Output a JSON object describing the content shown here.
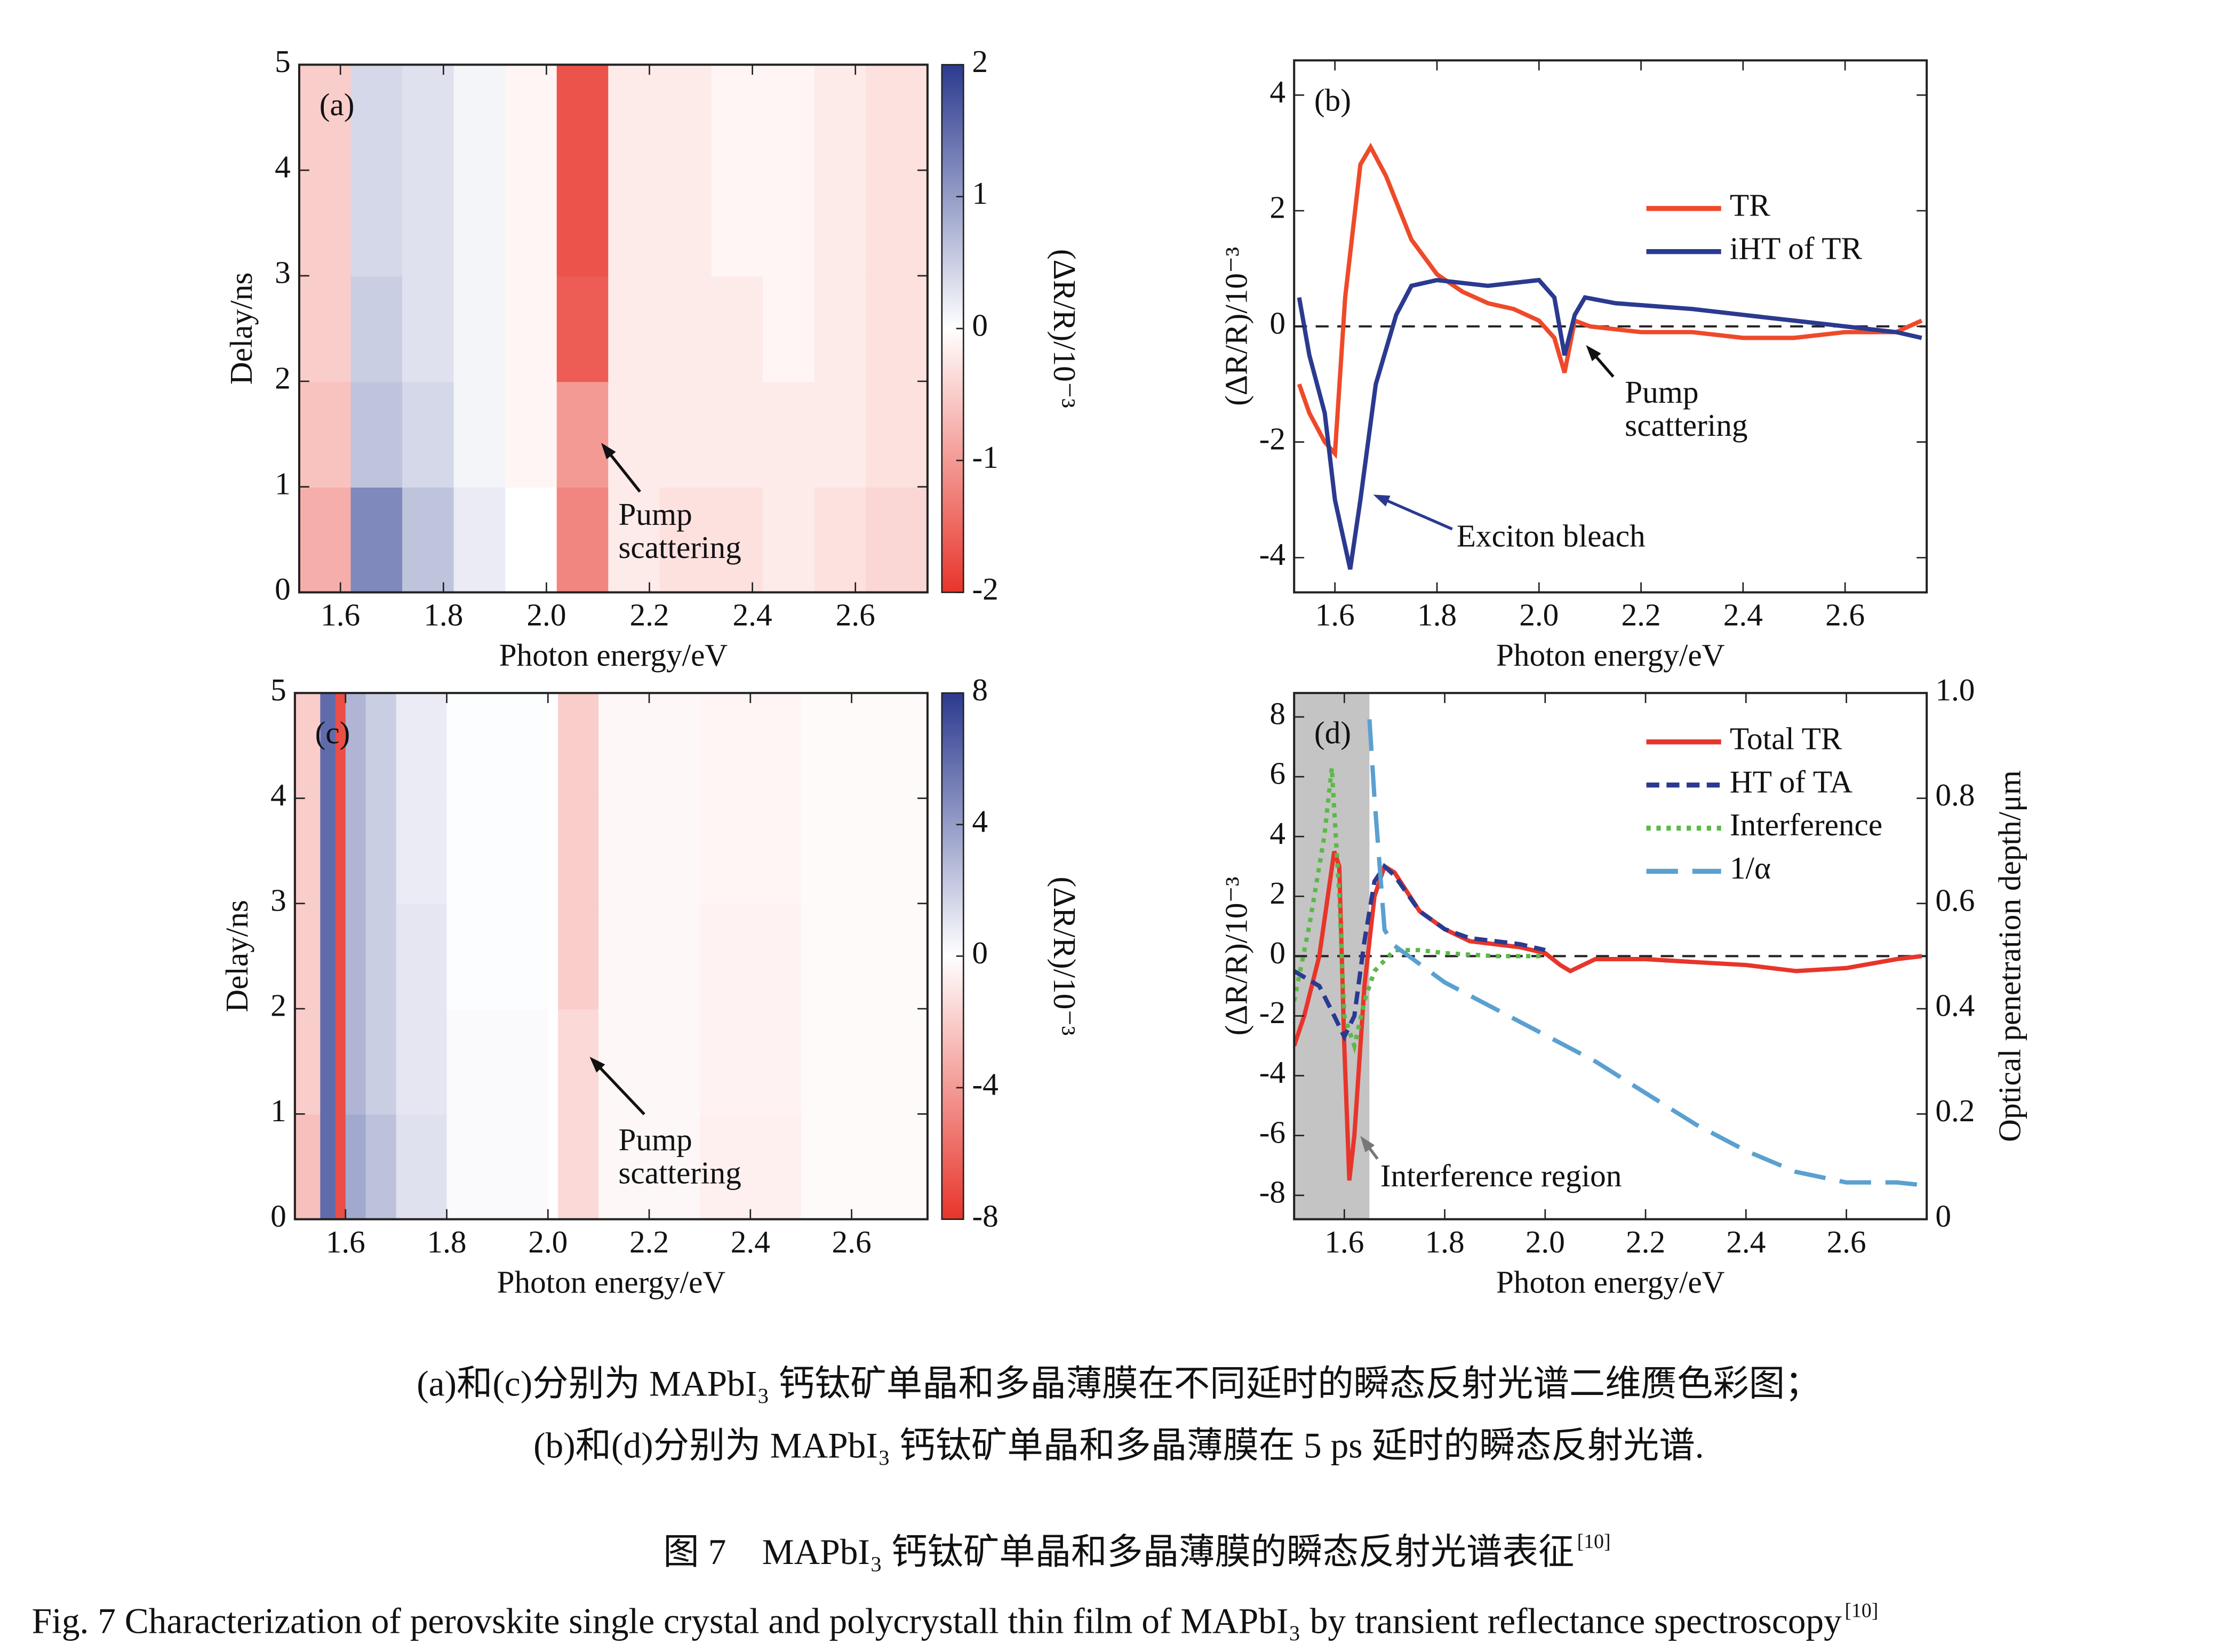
{
  "chart_data": [
    {
      "type": "heatmap",
      "panel_label": "(a)",
      "xlabel": "Photon energy/eV",
      "ylabel": "Delay/ns",
      "colorbar_label": "(ΔR/R)/10⁻³",
      "xlim": [
        1.52,
        2.74
      ],
      "ylim": [
        0,
        5
      ],
      "clim": [
        -2,
        2
      ],
      "xticks": [
        1.6,
        1.8,
        {
          "value": 2,
          "label": "2.0"
        },
        2.2,
        2.4,
        2.6
      ],
      "yticks": [
        0,
        1,
        2,
        3,
        4,
        5
      ],
      "cticks": [
        -2,
        -1,
        0,
        1,
        2
      ],
      "xbins": [
        1.52,
        1.62,
        1.72,
        1.82,
        1.92,
        2.02,
        2.12,
        2.22,
        2.32,
        2.42,
        2.52,
        2.62,
        2.74
      ],
      "ybins": [
        0,
        1,
        2,
        3,
        4,
        5
      ],
      "values": [
        [
          -0.8,
          1.2,
          0.6,
          0.2,
          0.0,
          -1.2,
          -0.2,
          -0.3,
          -0.3,
          -0.2,
          -0.3,
          -0.4
        ],
        [
          -0.6,
          0.6,
          0.4,
          0.1,
          -0.1,
          -1.0,
          -0.2,
          -0.2,
          -0.2,
          -0.2,
          -0.2,
          -0.3
        ],
        [
          -0.5,
          0.5,
          0.3,
          0.1,
          -0.1,
          -1.6,
          -0.2,
          -0.2,
          -0.2,
          -0.1,
          -0.2,
          -0.3
        ],
        [
          -0.5,
          0.4,
          0.3,
          0.1,
          -0.1,
          -1.7,
          -0.2,
          -0.2,
          -0.1,
          -0.1,
          -0.2,
          -0.3
        ],
        [
          -0.5,
          0.4,
          0.3,
          0.1,
          -0.1,
          -1.7,
          -0.2,
          -0.2,
          -0.1,
          -0.1,
          -0.2,
          -0.3
        ]
      ],
      "colors": {
        "positive": "#2b3a8f",
        "negative": "#e8352b"
      },
      "annotations": [
        {
          "text": [
            "Pump",
            "scattering"
          ]
        }
      ]
    },
    {
      "type": "line",
      "panel_label": "(b)",
      "xlabel": "Photon energy/eV",
      "ylabel": "(ΔR/R)/10⁻³",
      "xlim": [
        1.52,
        2.76
      ],
      "ylim": [
        -4.6,
        4.6
      ],
      "xticks": [
        1.6,
        1.8,
        {
          "value": 2,
          "label": "2.0"
        },
        2.2,
        2.4,
        2.6
      ],
      "yticks": [
        -4,
        -2,
        0,
        2,
        4
      ],
      "zero_line": true,
      "legend": "upper right",
      "series": [
        {
          "name": "TR",
          "color": "#ee4a2a",
          "dash": "solid",
          "x": [
            1.53,
            1.55,
            1.58,
            1.6,
            1.62,
            1.65,
            1.67,
            1.7,
            1.75,
            1.8,
            1.85,
            1.9,
            1.95,
            2.0,
            2.03,
            2.05,
            2.07,
            2.1,
            2.2,
            2.3,
            2.4,
            2.5,
            2.6,
            2.7,
            2.75
          ],
          "values": [
            -1,
            -1.5,
            -2,
            -2.2,
            0.5,
            2.8,
            3.1,
            2.6,
            1.5,
            0.9,
            0.6,
            0.4,
            0.3,
            0.1,
            -0.2,
            -0.8,
            0.1,
            0,
            -0.1,
            -0.1,
            -0.2,
            -0.2,
            -0.1,
            -0.1,
            0.1
          ]
        },
        {
          "name": "iHT of TR",
          "color": "#2b3a8f",
          "dash": "solid",
          "x": [
            1.53,
            1.55,
            1.58,
            1.6,
            1.63,
            1.65,
            1.68,
            1.72,
            1.75,
            1.8,
            1.9,
            2.0,
            2.03,
            2.05,
            2.07,
            2.09,
            2.15,
            2.3,
            2.4,
            2.5,
            2.6,
            2.7,
            2.75
          ],
          "values": [
            0.5,
            -0.5,
            -1.5,
            -3,
            -4.2,
            -3,
            -1,
            0.2,
            0.7,
            0.8,
            0.7,
            0.8,
            0.5,
            -0.5,
            0.2,
            0.5,
            0.4,
            0.3,
            0.2,
            0.1,
            0,
            -0.1,
            -0.2
          ]
        }
      ],
      "annotations": [
        {
          "text": [
            "Pump",
            "scattering"
          ]
        },
        {
          "text": [
            "Exciton bleach"
          ],
          "color": "#2b3a8f"
        }
      ]
    },
    {
      "type": "heatmap",
      "panel_label": "(c)",
      "xlabel": "Photon energy/eV",
      "ylabel": "Delay/ns",
      "colorbar_label": "(ΔR/R)/10⁻³",
      "xlim": [
        1.5,
        2.75
      ],
      "ylim": [
        0,
        5
      ],
      "clim": [
        -8,
        8
      ],
      "xticks": [
        1.6,
        1.8,
        {
          "value": 2,
          "label": "2.0"
        },
        2.2,
        2.4,
        2.6
      ],
      "yticks": [
        0,
        1,
        2,
        3,
        4,
        5
      ],
      "cticks": [
        -8,
        -4,
        0,
        4,
        8
      ],
      "xbins": [
        1.5,
        1.55,
        1.58,
        1.6,
        1.64,
        1.7,
        1.8,
        2.0,
        2.02,
        2.1,
        2.3,
        2.5,
        2.75
      ],
      "ybins": [
        0,
        1,
        2,
        3,
        4,
        5
      ],
      "values": [
        [
          -2.5,
          6,
          -7,
          3.5,
          2.5,
          1.2,
          0.2,
          0,
          -1.5,
          -0.3,
          -0.6,
          -0.2
        ],
        [
          -2,
          6,
          -7,
          3,
          2,
          1,
          0.2,
          0,
          -1.5,
          -0.3,
          -0.5,
          -0.2
        ],
        [
          -2,
          6,
          -7,
          3,
          2,
          1,
          0.1,
          0,
          -2,
          -0.3,
          -0.5,
          -0.2
        ],
        [
          -2,
          6,
          -7,
          3,
          2,
          0.8,
          0.1,
          0,
          -2,
          -0.3,
          -0.4,
          -0.2
        ],
        [
          -2,
          6,
          -7,
          3,
          2,
          0.8,
          0.1,
          0,
          -2,
          -0.3,
          -0.4,
          -0.2
        ]
      ],
      "colors": {
        "positive": "#2b3a8f",
        "negative": "#e8352b"
      },
      "annotations": [
        {
          "text": [
            "Pump",
            "scattering"
          ]
        }
      ]
    },
    {
      "type": "line",
      "panel_label": "(d)",
      "xlabel": "Photon energy/eV",
      "ylabel": "(ΔR/R)/10⁻³",
      "y2label": "Optical penetration depth/μm",
      "xlim": [
        1.5,
        2.76
      ],
      "ylim": [
        -8.8,
        8.8
      ],
      "y2lim": [
        0,
        1
      ],
      "xticks": [
        1.6,
        1.8,
        {
          "value": 2,
          "label": "2.0"
        },
        2.2,
        2.4,
        2.6
      ],
      "yticks": [
        -8,
        -6,
        -4,
        -2,
        0,
        2,
        4,
        6,
        8
      ],
      "y2ticks": [
        0,
        0.2,
        0.4,
        0.6,
        0.8,
        {
          "value": 1,
          "label": "1.0"
        }
      ],
      "zero_line": true,
      "legend": "upper right",
      "shaded_region": [
        1.5,
        1.65
      ],
      "shade_color": "#c4c4c4",
      "series": [
        {
          "name": "Total TR",
          "color": "#e8352b",
          "dash": "solid",
          "x": [
            1.5,
            1.52,
            1.55,
            1.58,
            1.59,
            1.6,
            1.61,
            1.62,
            1.64,
            1.66,
            1.68,
            1.7,
            1.75,
            1.8,
            1.85,
            1.9,
            1.95,
            2.0,
            2.03,
            2.05,
            2.1,
            2.2,
            2.3,
            2.4,
            2.5,
            2.6,
            2.7,
            2.75
          ],
          "values": [
            -3,
            -2,
            0,
            3.5,
            3,
            -3,
            -7.5,
            -6,
            -1,
            2,
            3,
            2.8,
            1.5,
            0.9,
            0.5,
            0.4,
            0.3,
            0.1,
            -0.3,
            -0.5,
            -0.1,
            -0.1,
            -0.2,
            -0.3,
            -0.5,
            -0.4,
            -0.1,
            0
          ]
        },
        {
          "name": "HT of TA",
          "color": "#2b3a8f",
          "dash": "dashed",
          "x": [
            1.5,
            1.55,
            1.58,
            1.6,
            1.62,
            1.64,
            1.66,
            1.68,
            1.7,
            1.75,
            1.8,
            1.85,
            1.9,
            1.95,
            2.0
          ],
          "values": [
            -0.5,
            -1,
            -2,
            -2.7,
            -2,
            0.5,
            2.5,
            3,
            2.7,
            1.5,
            0.9,
            0.6,
            0.5,
            0.4,
            0.2
          ]
        },
        {
          "name": "Interference",
          "color": "#5cb849",
          "dash": "dotted",
          "x": [
            1.5,
            1.53,
            1.56,
            1.575,
            1.59,
            1.6,
            1.62,
            1.64,
            1.66,
            1.7,
            1.75,
            1.8,
            1.9,
            2.0
          ],
          "values": [
            -1.5,
            1,
            4,
            6.3,
            2,
            -2,
            -3,
            -1.5,
            -0.5,
            0.2,
            0.2,
            0.1,
            0,
            0
          ]
        },
        {
          "name": "1/α",
          "color": "#5aa0d0",
          "dash": "longdash",
          "axis": "y2",
          "x": [
            1.65,
            1.66,
            1.68,
            1.7,
            1.8,
            1.9,
            2.0,
            2.1,
            2.2,
            2.3,
            2.4,
            2.5,
            2.6,
            2.7,
            2.75
          ],
          "values": [
            0.95,
            0.8,
            0.55,
            0.52,
            0.45,
            0.4,
            0.35,
            0.3,
            0.24,
            0.18,
            0.13,
            0.09,
            0.07,
            0.07,
            0.065
          ]
        }
      ],
      "annotations": [
        {
          "text": [
            "Interference region"
          ],
          "color": "#111111"
        }
      ]
    }
  ],
  "caption": {
    "lines": [
      "(a)和(c)分别为 MAPbI₃ 钙钛矿单晶和多晶薄膜在不同延时的瞬态反射光谱二维赝色彩图；",
      "(b)和(d)分别为 MAPbI₃ 钙钛矿单晶和多晶薄膜在 5 ps 延时的瞬态反射光谱."
    ],
    "title_cn": "图 7　MAPbI₃ 钙钛矿单晶和多晶薄膜的瞬态反射光谱表征",
    "title_en": "Fig. 7  Characterization of perovskite single crystal and polycrystall thin film of MAPbI₃ by transient reflectance spectroscopy",
    "ref": "[10]"
  }
}
